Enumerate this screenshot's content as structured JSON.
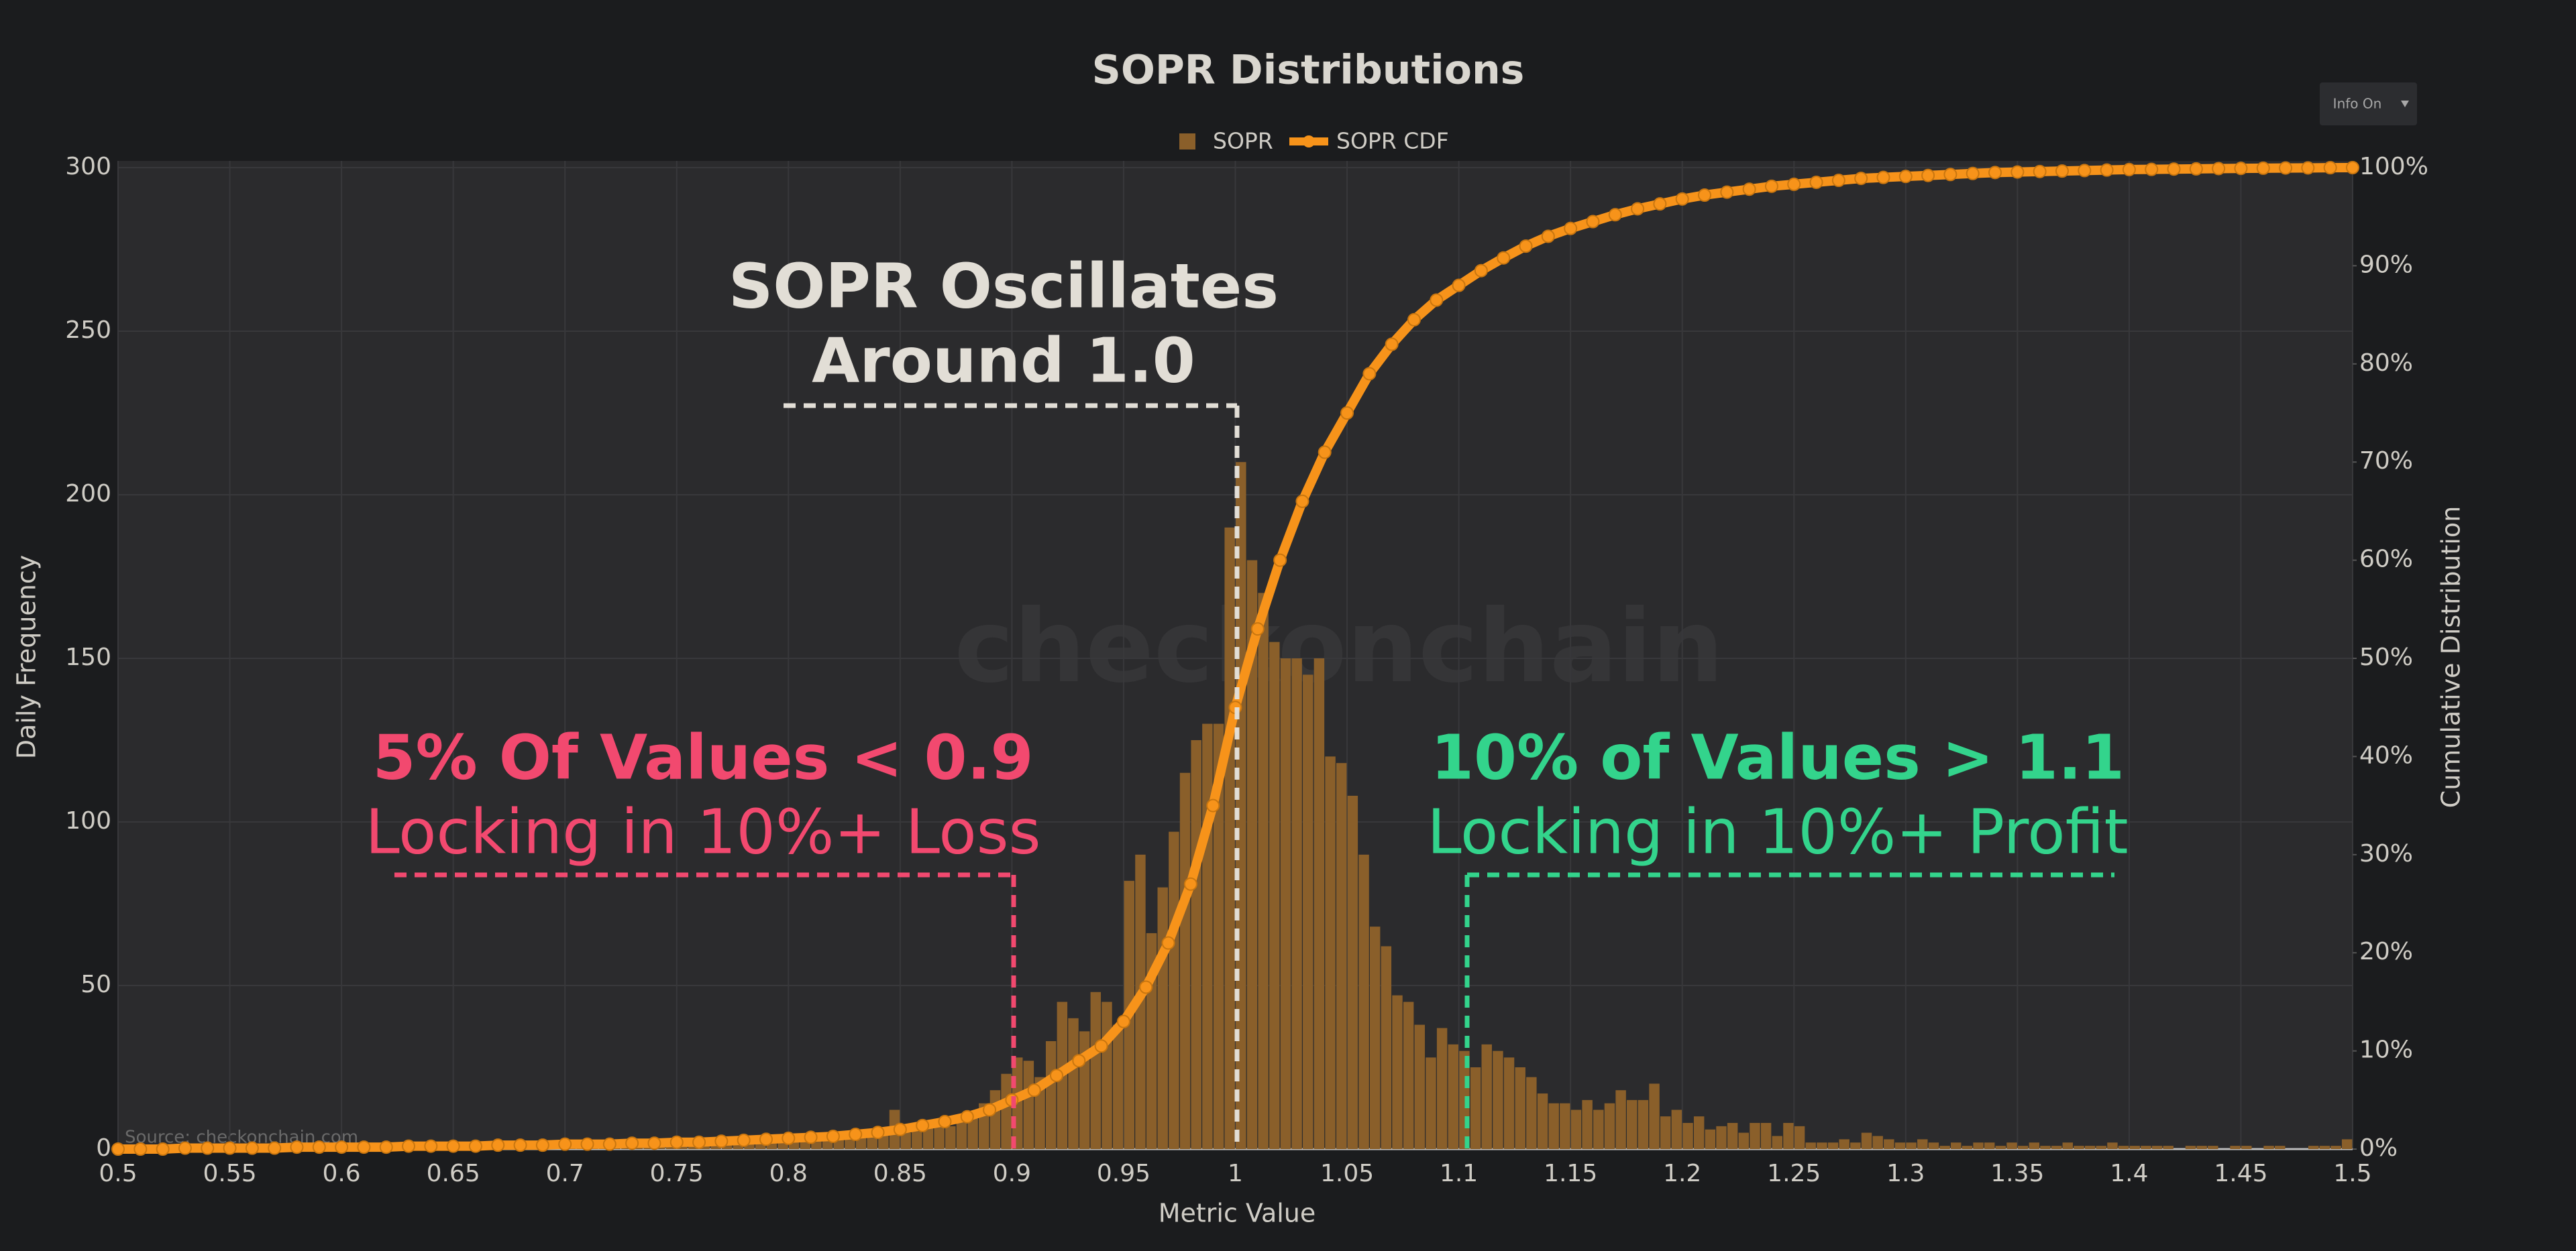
{
  "chart_data": {
    "type": "histogram",
    "title": "SOPR Distributions",
    "x_label": "Metric Value",
    "y_label": "Daily Frequency",
    "y2_label": "Cumulative Distribution",
    "bins": [
      0.5,
      0.505,
      0.51,
      0.515,
      0.52,
      0.525,
      0.53,
      0.535,
      0.54,
      0.545,
      0.55,
      0.555,
      0.56,
      0.565,
      0.57,
      0.575,
      0.58,
      0.585,
      0.59,
      0.595,
      0.6,
      0.605,
      0.61,
      0.615,
      0.62,
      0.625,
      0.63,
      0.635,
      0.64,
      0.645,
      0.65,
      0.655,
      0.66,
      0.665,
      0.67,
      0.675,
      0.68,
      0.685,
      0.69,
      0.695,
      0.7,
      0.705,
      0.71,
      0.715,
      0.72,
      0.725,
      0.73,
      0.735,
      0.74,
      0.745,
      0.75,
      0.755,
      0.76,
      0.765,
      0.77,
      0.775,
      0.78,
      0.785,
      0.79,
      0.795,
      0.8,
      0.805,
      0.81,
      0.815,
      0.82,
      0.825,
      0.83,
      0.835,
      0.84,
      0.845,
      0.85,
      0.855,
      0.86,
      0.865,
      0.87,
      0.875,
      0.88,
      0.885,
      0.89,
      0.895,
      0.9,
      0.905,
      0.91,
      0.915,
      0.92,
      0.925,
      0.93,
      0.935,
      0.94,
      0.945,
      0.95,
      0.955,
      0.96,
      0.965,
      0.97,
      0.975,
      0.98,
      0.985,
      0.99,
      0.995,
      1.0,
      1.005,
      1.01,
      1.015,
      1.02,
      1.025,
      1.03,
      1.035,
      1.04,
      1.045,
      1.05,
      1.055,
      1.06,
      1.065,
      1.07,
      1.075,
      1.08,
      1.085,
      1.09,
      1.095,
      1.1,
      1.105,
      1.11,
      1.115,
      1.12,
      1.125,
      1.13,
      1.135,
      1.14,
      1.145,
      1.15,
      1.155,
      1.16,
      1.165,
      1.17,
      1.175,
      1.18,
      1.185,
      1.19,
      1.195,
      1.2,
      1.205,
      1.21,
      1.215,
      1.22,
      1.225,
      1.23,
      1.235,
      1.24,
      1.245,
      1.25,
      1.255,
      1.26,
      1.265,
      1.27,
      1.275,
      1.28,
      1.285,
      1.29,
      1.295,
      1.3,
      1.305,
      1.31,
      1.315,
      1.32,
      1.325,
      1.33,
      1.335,
      1.34,
      1.345,
      1.35,
      1.355,
      1.36,
      1.365,
      1.37,
      1.375,
      1.38,
      1.385,
      1.39,
      1.395,
      1.4,
      1.405,
      1.41,
      1.415,
      1.42,
      1.425,
      1.43,
      1.435,
      1.44,
      1.445,
      1.45,
      1.455,
      1.46,
      1.465,
      1.47,
      1.475,
      1.48,
      1.485,
      1.49,
      1.495,
      1.5
    ],
    "series": [
      {
        "name": "SOPR",
        "color": "#8a5f2a",
        "values": [
          0,
          0,
          0,
          1,
          0,
          0,
          1,
          0,
          0,
          1,
          0,
          1,
          0,
          0,
          1,
          0,
          1,
          0,
          1,
          0,
          1,
          0,
          1,
          1,
          0,
          1,
          0,
          1,
          1,
          0,
          1,
          1,
          0,
          1,
          1,
          1,
          0,
          1,
          1,
          1,
          1,
          1,
          1,
          2,
          1,
          1,
          2,
          1,
          1,
          2,
          2,
          1,
          2,
          2,
          2,
          3,
          2,
          3,
          3,
          2,
          3,
          3,
          4,
          3,
          4,
          5,
          4,
          5,
          6,
          12,
          5,
          6,
          7,
          8,
          7,
          9,
          10,
          14,
          18,
          23,
          28,
          27,
          22,
          33,
          45,
          40,
          36,
          48,
          45,
          38,
          82,
          90,
          66,
          80,
          97,
          115,
          125,
          130,
          130,
          190,
          210,
          180,
          170,
          155,
          150,
          150,
          145,
          150,
          120,
          118,
          108,
          90,
          68,
          62,
          47,
          45,
          38,
          28,
          37,
          32,
          30,
          25,
          32,
          30,
          28,
          25,
          22,
          17,
          14,
          14,
          12,
          15,
          12,
          14,
          18,
          15,
          15,
          20,
          10,
          12,
          8,
          10,
          6,
          7,
          8,
          5,
          8,
          8,
          4,
          8,
          7,
          2,
          2,
          2,
          3,
          2,
          5,
          4,
          3,
          2,
          2,
          3,
          2,
          1,
          2,
          1,
          2,
          2,
          1,
          2,
          1,
          2,
          1,
          1,
          2,
          1,
          1,
          1,
          2,
          1,
          1,
          1,
          1,
          1,
          0,
          1,
          1,
          1,
          0,
          1,
          1,
          0,
          1,
          1,
          0,
          0,
          1,
          1,
          1,
          3
        ]
      },
      {
        "name": "SOPR CDF",
        "color": "#f7931a",
        "type": "line",
        "axis": "y2",
        "x": [
          0.5,
          0.51,
          0.52,
          0.53,
          0.54,
          0.55,
          0.56,
          0.57,
          0.58,
          0.59,
          0.6,
          0.61,
          0.62,
          0.63,
          0.64,
          0.65,
          0.66,
          0.67,
          0.68,
          0.69,
          0.7,
          0.71,
          0.72,
          0.73,
          0.74,
          0.75,
          0.76,
          0.77,
          0.78,
          0.79,
          0.8,
          0.81,
          0.82,
          0.83,
          0.84,
          0.85,
          0.86,
          0.87,
          0.88,
          0.89,
          0.9,
          0.91,
          0.92,
          0.93,
          0.94,
          0.95,
          0.96,
          0.97,
          0.98,
          0.99,
          1.0,
          1.01,
          1.02,
          1.03,
          1.04,
          1.05,
          1.06,
          1.07,
          1.08,
          1.09,
          1.1,
          1.11,
          1.12,
          1.13,
          1.14,
          1.15,
          1.16,
          1.17,
          1.18,
          1.19,
          1.2,
          1.21,
          1.22,
          1.23,
          1.24,
          1.25,
          1.26,
          1.27,
          1.28,
          1.29,
          1.3,
          1.31,
          1.32,
          1.33,
          1.34,
          1.35,
          1.36,
          1.37,
          1.38,
          1.39,
          1.4,
          1.41,
          1.42,
          1.43,
          1.44,
          1.45,
          1.46,
          1.47,
          1.48,
          1.49,
          1.5
        ],
        "values": [
          0,
          0,
          0,
          0.1,
          0.1,
          0.1,
          0.1,
          0.1,
          0.2,
          0.2,
          0.2,
          0.2,
          0.2,
          0.3,
          0.3,
          0.3,
          0.3,
          0.4,
          0.4,
          0.4,
          0.5,
          0.5,
          0.5,
          0.6,
          0.6,
          0.7,
          0.7,
          0.8,
          0.9,
          1,
          1.1,
          1.2,
          1.3,
          1.5,
          1.7,
          2,
          2.4,
          2.8,
          3.3,
          4,
          5,
          6,
          7.5,
          9,
          10.5,
          13,
          16.5,
          21,
          27,
          35,
          45,
          53,
          60,
          66,
          71,
          75,
          79,
          82,
          84.5,
          86.5,
          88,
          89.5,
          90.8,
          92,
          93,
          93.8,
          94.5,
          95.2,
          95.8,
          96.3,
          96.8,
          97.2,
          97.5,
          97.8,
          98.1,
          98.3,
          98.5,
          98.7,
          98.9,
          99,
          99.1,
          99.2,
          99.3,
          99.4,
          99.5,
          99.55,
          99.6,
          99.65,
          99.7,
          99.75,
          99.8,
          99.82,
          99.85,
          99.87,
          99.9,
          99.92,
          99.94,
          99.96,
          99.97,
          99.99,
          100
        ]
      }
    ],
    "xlim": [
      0.5,
      1.5
    ],
    "xticks": [
      0.5,
      0.55,
      0.6,
      0.65,
      0.7,
      0.75,
      0.8,
      0.85,
      0.9,
      0.95,
      1,
      1.05,
      1.1,
      1.15,
      1.2,
      1.25,
      1.3,
      1.35,
      1.4,
      1.45,
      1.5
    ],
    "ylim": [
      0,
      300
    ],
    "yticks": [
      0,
      50,
      100,
      150,
      200,
      250,
      300
    ],
    "y2lim": [
      0,
      100
    ],
    "y2ticks": [
      {
        "value": 0,
        "label": "0%"
      },
      {
        "value": 10,
        "label": "10%"
      },
      {
        "value": 20,
        "label": "20%"
      },
      {
        "value": 30,
        "label": "30%"
      },
      {
        "value": 40,
        "label": "40%"
      },
      {
        "value": 50,
        "label": "50%"
      },
      {
        "value": 60,
        "label": "60%"
      },
      {
        "value": 70,
        "label": "70%"
      },
      {
        "value": 80,
        "label": "80%"
      },
      {
        "value": 90,
        "label": "90%"
      },
      {
        "value": 100,
        "label": "100%"
      }
    ],
    "grid": true,
    "legend": "top",
    "annotations": [
      {
        "lines": [
          "SOPR Oscillates",
          "Around 1.0"
        ],
        "color": "#e2ded6"
      },
      {
        "lines": [
          "5% Of Values < 0.9",
          "Locking in 10%+ Loss"
        ],
        "color": "#f2496f"
      },
      {
        "lines": [
          "10% of Values > 1.1",
          "Locking in 10%+ Profit"
        ],
        "color": "#33d48c"
      }
    ],
    "watermark": "checkonchain",
    "source": "Source: checkonchain.com"
  },
  "controls": {
    "info_button": "Info On"
  }
}
